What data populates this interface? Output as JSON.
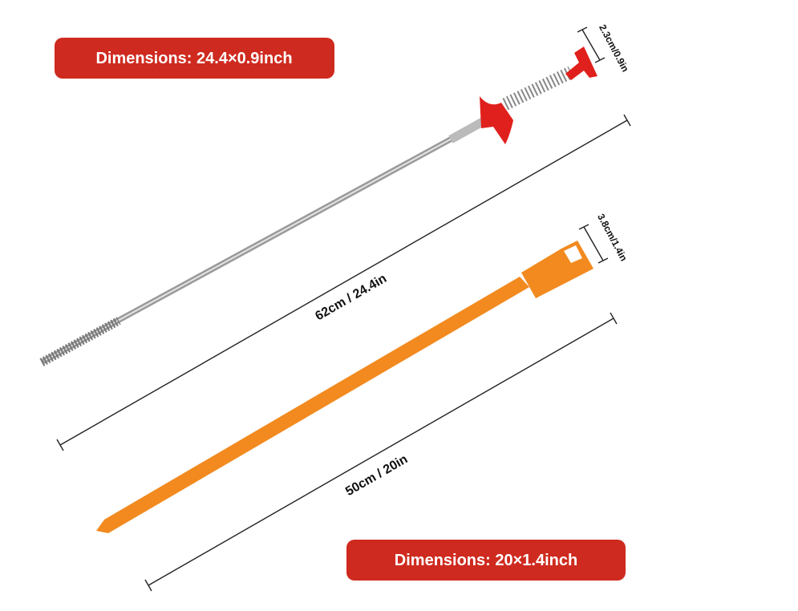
{
  "badges": [
    "Dimensions: 24.4×0.9inch",
    "Dimensions: 20×1.4inch"
  ],
  "measurements": {
    "grabber_length": "62cm / 24.4in",
    "grabber_width": "2.3cm/0.9in",
    "hook_length": "50cm / 20in",
    "hook_width": "3.8cm/1.4in"
  }
}
